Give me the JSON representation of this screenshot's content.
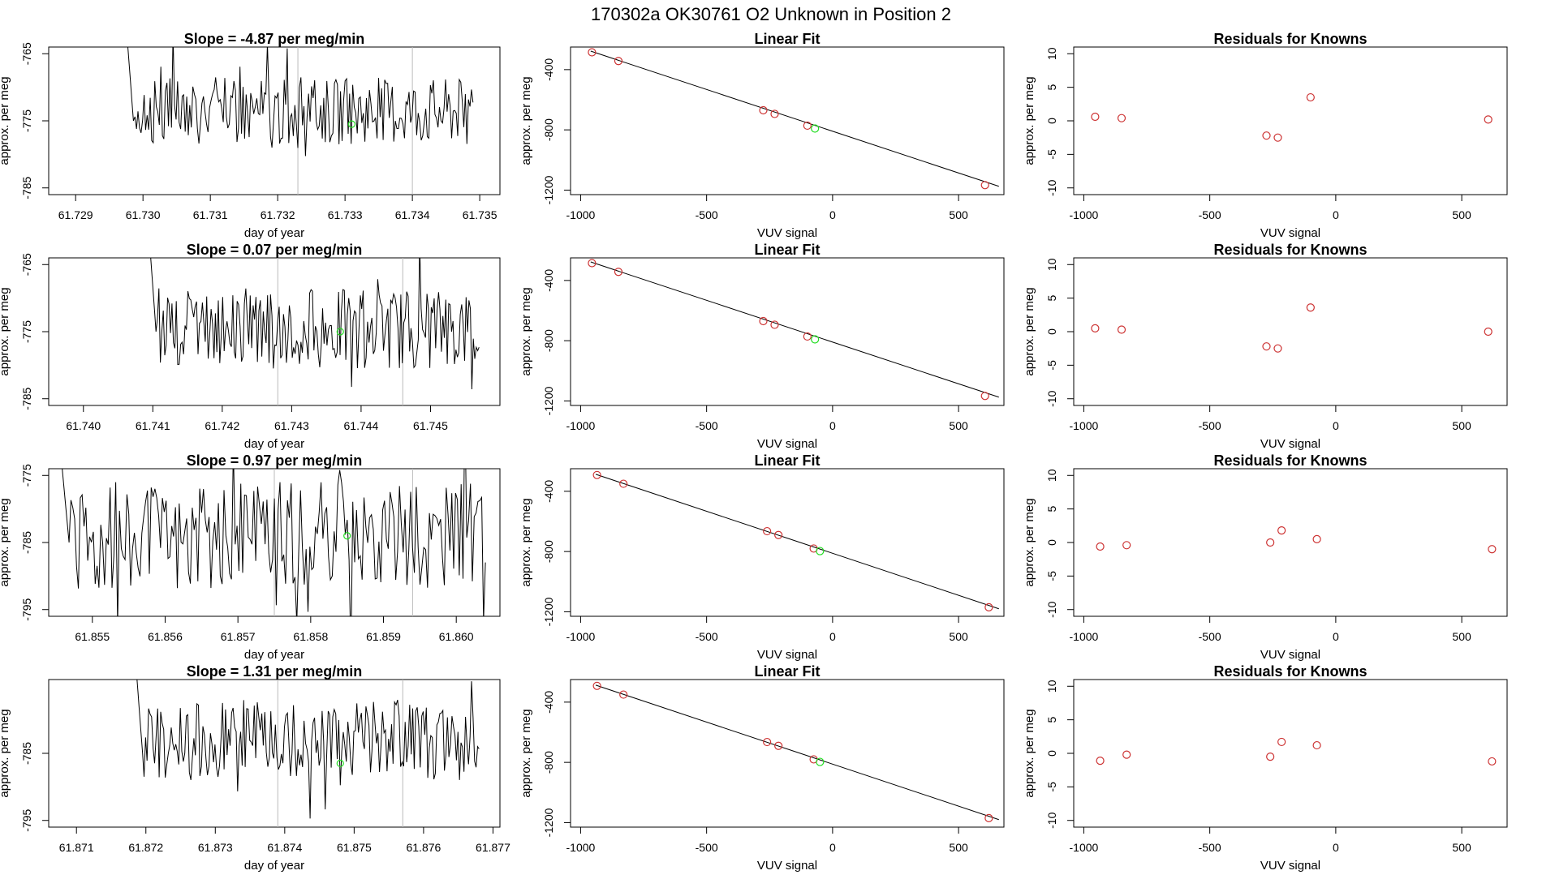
{
  "main_title": "170302a      OK30761    O2 Unknown in Position  2",
  "colors": {
    "line": "#000000",
    "known_point": "#cd3333",
    "unknown_point": "#22dd22",
    "vline": "#bbbbbb"
  },
  "chart_data": [
    {
      "panel": "timeseries-1",
      "type": "line",
      "title": "Slope =  -4.87  per meg/min",
      "xlabel": "day of year",
      "ylabel": "approx. per meg",
      "xlim": [
        61.7286,
        61.7353
      ],
      "ylim": [
        -786,
        -764
      ],
      "xticks": [
        "61.729",
        "61.730",
        "61.731",
        "61.732",
        "61.733",
        "61.734",
        "61.735"
      ],
      "xtick_values": [
        61.729,
        61.73,
        61.731,
        61.732,
        61.733,
        61.734,
        61.735
      ],
      "yticks": [
        "-765",
        "-775",
        "-785"
      ],
      "ytick_values": [
        -765,
        -775,
        -785
      ],
      "vlines": [
        61.7323,
        61.734
      ],
      "series_start": 61.7297,
      "series_end": 61.7349,
      "series_mean": -773.5,
      "series_amp": 5,
      "unknown_point": [
        61.7331,
        -775.5
      ]
    },
    {
      "panel": "fit-1",
      "type": "scatter",
      "title": "Linear Fit",
      "xlabel": "VUV signal",
      "ylabel": "approx. per meg",
      "xlim": [
        -1040,
        680
      ],
      "ylim": [
        -1230,
        -250
      ],
      "xticks": [
        "-1000",
        "-500",
        "0",
        "500"
      ],
      "xtick_values": [
        -1000,
        -500,
        0,
        500
      ],
      "yticks": [
        "-400",
        "-800",
        "-1200"
      ],
      "ytick_values": [
        -400,
        -800,
        -1200
      ],
      "fit_line": {
        "x": [
          -960,
          660
        ],
        "y": [
          -277,
          -1175
        ]
      },
      "knowns": {
        "x": [
          -955,
          -850,
          -275,
          -230,
          -100,
          605
        ],
        "y": [
          -285,
          -343,
          -670,
          -694,
          -772,
          -1167
        ]
      },
      "unknown": {
        "x": -70,
        "y": -791
      }
    },
    {
      "panel": "residuals-1",
      "type": "scatter",
      "title": "Residuals for Knowns",
      "xlabel": "VUV signal",
      "ylabel": "approx. per meg",
      "xlim": [
        -1040,
        680
      ],
      "ylim": [
        -11,
        11
      ],
      "xticks": [
        "-1000",
        "-500",
        "0",
        "500"
      ],
      "xtick_values": [
        -1000,
        -500,
        0,
        500
      ],
      "yticks": [
        "10",
        "5",
        "0",
        "-5",
        "-10"
      ],
      "ytick_values": [
        10,
        5,
        0,
        -5,
        -10
      ],
      "x": [
        -955,
        -850,
        -275,
        -230,
        -100,
        605
      ],
      "y": [
        0.6,
        0.4,
        -2.2,
        -2.5,
        3.5,
        0.2
      ]
    },
    {
      "panel": "timeseries-2",
      "type": "line",
      "title": "Slope =  0.07  per meg/min",
      "xlabel": "day of year",
      "ylabel": "approx. per meg",
      "xlim": [
        61.7395,
        61.746
      ],
      "ylim": [
        -786,
        -764
      ],
      "xticks": [
        "61.740",
        "61.741",
        "61.742",
        "61.743",
        "61.744",
        "61.745"
      ],
      "xtick_values": [
        61.74,
        61.741,
        61.742,
        61.743,
        61.744,
        61.745
      ],
      "yticks": [
        "-765",
        "-775",
        "-785"
      ],
      "ytick_values": [
        -765,
        -775,
        -785
      ],
      "vlines": [
        61.7428,
        61.7446
      ],
      "series_start": 61.7409,
      "series_end": 61.7457,
      "series_mean": -774.5,
      "series_amp": 6,
      "unknown_point": [
        61.7437,
        -775
      ]
    },
    {
      "panel": "fit-2",
      "type": "scatter",
      "title": "Linear Fit",
      "xlabel": "VUV signal",
      "ylabel": "approx. per meg",
      "xlim": [
        -1040,
        680
      ],
      "ylim": [
        -1230,
        -250
      ],
      "xticks": [
        "-1000",
        "-500",
        "0",
        "500"
      ],
      "xtick_values": [
        -1000,
        -500,
        0,
        500
      ],
      "yticks": [
        "-400",
        "-800",
        "-1200"
      ],
      "ytick_values": [
        -400,
        -800,
        -1200
      ],
      "fit_line": {
        "x": [
          -960,
          660
        ],
        "y": [
          -277,
          -1175
        ]
      },
      "knowns": {
        "x": [
          -955,
          -850,
          -275,
          -230,
          -100,
          605
        ],
        "y": [
          -285,
          -343,
          -670,
          -694,
          -772,
          -1167
        ]
      },
      "unknown": {
        "x": -70,
        "y": -791
      }
    },
    {
      "panel": "residuals-2",
      "type": "scatter",
      "title": "Residuals for Knowns",
      "xlabel": "VUV signal",
      "ylabel": "approx. per meg",
      "xlim": [
        -1040,
        680
      ],
      "ylim": [
        -11,
        11
      ],
      "xticks": [
        "-1000",
        "-500",
        "0",
        "500"
      ],
      "xtick_values": [
        -1000,
        -500,
        0,
        500
      ],
      "yticks": [
        "10",
        "5",
        "0",
        "-5",
        "-10"
      ],
      "ytick_values": [
        10,
        5,
        0,
        -5,
        -10
      ],
      "x": [
        -955,
        -850,
        -275,
        -230,
        -100,
        605
      ],
      "y": [
        0.5,
        0.3,
        -2.2,
        -2.5,
        3.6,
        0.0
      ]
    },
    {
      "panel": "timeseries-3",
      "type": "line",
      "title": "Slope =  0.97  per meg/min",
      "xlabel": "day of year",
      "ylabel": "approx. per meg",
      "xlim": [
        61.8544,
        61.8606
      ],
      "ylim": [
        -796,
        -774
      ],
      "xticks": [
        "61.855",
        "61.856",
        "61.857",
        "61.858",
        "61.859",
        "61.860"
      ],
      "xtick_values": [
        61.855,
        61.856,
        61.857,
        61.858,
        61.859,
        61.86
      ],
      "yticks": [
        "-775",
        "-785",
        "-795"
      ],
      "ytick_values": [
        -775,
        -785,
        -795
      ],
      "vlines": [
        61.8575,
        61.8594
      ],
      "series_start": 61.8545,
      "series_end": 61.8604,
      "series_mean": -784,
      "series_amp": 8,
      "unknown_point": [
        61.8585,
        -784
      ]
    },
    {
      "panel": "fit-3",
      "type": "scatter",
      "title": "Linear Fit",
      "xlabel": "VUV signal",
      "ylabel": "approx. per meg",
      "xlim": [
        -1040,
        680
      ],
      "ylim": [
        -1230,
        -250
      ],
      "xticks": [
        "-1000",
        "-500",
        "0",
        "500"
      ],
      "xtick_values": [
        -1000,
        -500,
        0,
        500
      ],
      "yticks": [
        "-400",
        "-800",
        "-1200"
      ],
      "ytick_values": [
        -400,
        -800,
        -1200
      ],
      "fit_line": {
        "x": [
          -940,
          660
        ],
        "y": [
          -287,
          -1180
        ]
      },
      "knowns": {
        "x": [
          -935,
          -830,
          -260,
          -215,
          -75,
          620
        ],
        "y": [
          -292,
          -350,
          -665,
          -690,
          -780,
          -1170
        ]
      },
      "unknown": {
        "x": -50,
        "y": -797
      }
    },
    {
      "panel": "residuals-3",
      "type": "scatter",
      "title": "Residuals for Knowns",
      "xlabel": "VUV signal",
      "ylabel": "approx. per meg",
      "xlim": [
        -1040,
        680
      ],
      "ylim": [
        -11,
        11
      ],
      "xticks": [
        "-1000",
        "-500",
        "0",
        "500"
      ],
      "xtick_values": [
        -1000,
        -500,
        0,
        500
      ],
      "yticks": [
        "10",
        "5",
        "0",
        "-5",
        "-10"
      ],
      "ytick_values": [
        10,
        5,
        0,
        -5,
        -10
      ],
      "x": [
        -935,
        -830,
        -260,
        -215,
        -75,
        620
      ],
      "y": [
        -0.6,
        -0.4,
        0.0,
        1.8,
        0.5,
        -1.0
      ]
    },
    {
      "panel": "timeseries-4",
      "type": "line",
      "title": "Slope =  1.31  per meg/min",
      "xlabel": "day of year",
      "ylabel": "approx. per meg",
      "xlim": [
        61.8706,
        61.8771
      ],
      "ylim": [
        -796,
        -774
      ],
      "xticks": [
        "61.871",
        "61.872",
        "61.873",
        "61.874",
        "61.875",
        "61.876",
        "61.877"
      ],
      "xtick_values": [
        61.871,
        61.872,
        61.873,
        61.874,
        61.875,
        61.876,
        61.877
      ],
      "yticks": [
        "-785",
        "-795"
      ],
      "ytick_values": [
        -785,
        -795
      ],
      "vlines": [
        61.8739,
        61.8757
      ],
      "series_start": 61.8718,
      "series_end": 61.8768,
      "series_mean": -783,
      "series_amp": 6,
      "unknown_point": [
        61.8748,
        -786.5
      ]
    },
    {
      "panel": "fit-4",
      "type": "scatter",
      "title": "Linear Fit",
      "xlabel": "VUV signal",
      "ylabel": "approx. per meg",
      "xlim": [
        -1040,
        680
      ],
      "ylim": [
        -1230,
        -250
      ],
      "xticks": [
        "-1000",
        "-500",
        "0",
        "500"
      ],
      "xtick_values": [
        -1000,
        -500,
        0,
        500
      ],
      "yticks": [
        "-400",
        "-800",
        "-1200"
      ],
      "ytick_values": [
        -400,
        -800,
        -1200
      ],
      "fit_line": {
        "x": [
          -940,
          660
        ],
        "y": [
          -287,
          -1180
        ]
      },
      "knowns": {
        "x": [
          -935,
          -830,
          -260,
          -215,
          -75,
          620
        ],
        "y": [
          -292,
          -350,
          -665,
          -690,
          -780,
          -1170
        ]
      },
      "unknown": {
        "x": -50,
        "y": -797
      }
    },
    {
      "panel": "residuals-4",
      "type": "scatter",
      "title": "Residuals for Knowns",
      "xlabel": "VUV signal",
      "ylabel": "approx. per meg",
      "xlim": [
        -1040,
        680
      ],
      "ylim": [
        -11,
        11
      ],
      "xticks": [
        "-1000",
        "-500",
        "0",
        "500"
      ],
      "xtick_values": [
        -1000,
        -500,
        0,
        500
      ],
      "yticks": [
        "10",
        "5",
        "0",
        "-5",
        "-10"
      ],
      "ytick_values": [
        10,
        5,
        0,
        -5,
        -10
      ],
      "x": [
        -935,
        -830,
        -260,
        -215,
        -75,
        620
      ],
      "y": [
        -1.1,
        -0.2,
        -0.5,
        1.7,
        1.2,
        -1.2
      ]
    }
  ]
}
